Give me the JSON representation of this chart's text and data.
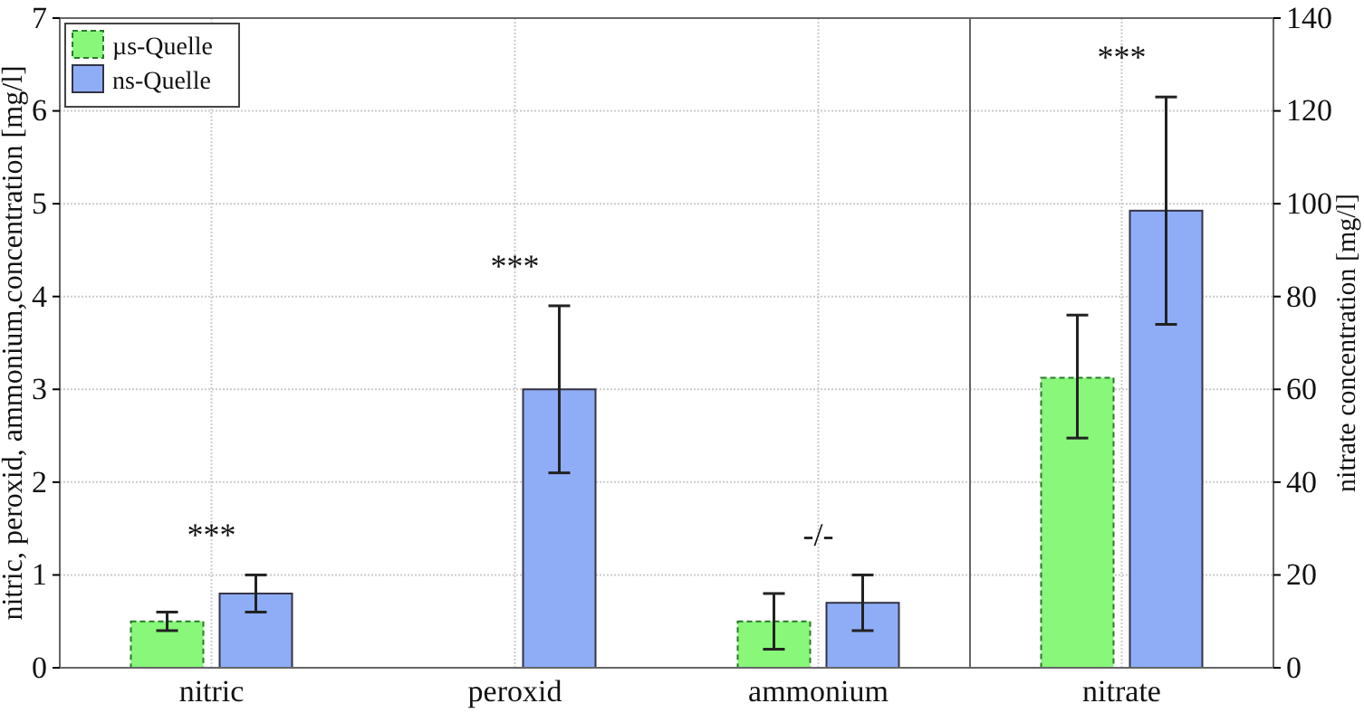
{
  "chart_data": [
    {
      "type": "bar",
      "categories": [
        "nitric",
        "peroxid",
        "ammonium"
      ],
      "ylabel": "nitric, peroxid, ammonium,concentration [mg/l]",
      "ylim": [
        0,
        7
      ],
      "yticks": [
        0,
        1,
        2,
        3,
        4,
        5,
        6,
        7
      ],
      "grid": true,
      "legend": "top left",
      "series": [
        {
          "name": "µs-Quelle",
          "color": "#88f77a",
          "line_style": "dashed",
          "values": [
            0.5,
            0,
            0.5
          ],
          "errors": [
            0.1,
            null,
            0.3
          ]
        },
        {
          "name": "ns-Quelle",
          "color": "#8fadf7",
          "line_style": "solid",
          "values": [
            0.8,
            3,
            0.7
          ],
          "errors": [
            0.2,
            0.9,
            0.3
          ]
        }
      ],
      "annotations": [
        "***",
        "***",
        "-/-"
      ]
    },
    {
      "type": "bar",
      "categories": [
        "nitrate"
      ],
      "y2label": "nitrate concentration [mg/l]",
      "y2lim": [
        0,
        140
      ],
      "y2ticks": [
        0,
        20,
        40,
        60,
        80,
        100,
        120,
        140
      ],
      "grid": true,
      "series": [
        {
          "color": "#88f77a",
          "line_style": "dashed",
          "axis": "y2",
          "values": [
            62.5
          ],
          "errors": [
            [
              49.5,
              76
            ]
          ]
        },
        {
          "color": "#8fadf7",
          "line_style": "solid",
          "axis": "y2",
          "values": [
            98.5
          ],
          "errors": [
            [
              74,
              123
            ]
          ]
        }
      ],
      "annotations": [
        "***"
      ]
    }
  ]
}
